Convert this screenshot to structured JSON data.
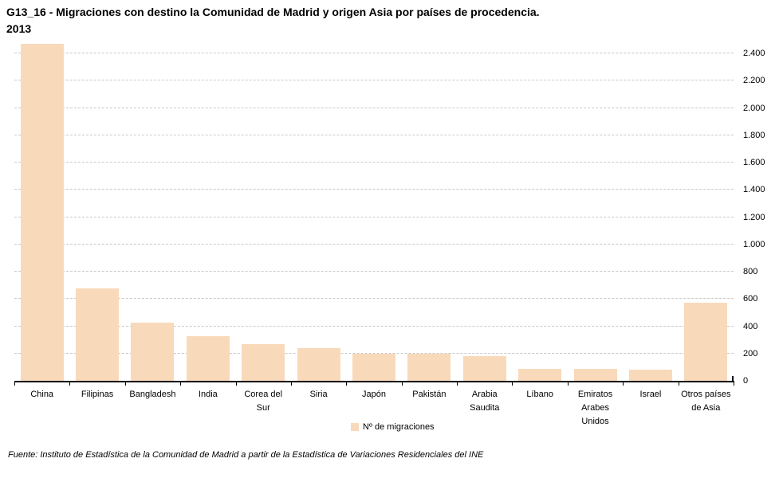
{
  "title": {
    "line1": "G13_16 - Migraciones con destino la Comunidad de Madrid y origen Asia por países de procedencia.",
    "line2": "2013"
  },
  "legend": {
    "label": "Nº de migraciones"
  },
  "footer": {
    "source": "Fuente: Instituto de Estadística de la Comunidad de Madrid a partir de la Estadística de Variaciones Residenciales del INE"
  },
  "colors": {
    "bar_fill": "#F8DABB",
    "gridline": "#C9C9C9",
    "axis": "#000000",
    "text": "#000000"
  },
  "chart_data": {
    "type": "bar",
    "title": "G13_16 - Migraciones con destino la Comunidad de Madrid y origen Asia por países de procedencia.",
    "subtitle": "2013",
    "series_name": "Nº de migraciones",
    "categories": [
      "China",
      "Filipinas",
      "Bangladesh",
      "India",
      "Corea del Sur",
      "Siria",
      "Japón",
      "Pakistán",
      "Arabia Saudita",
      "Líbano",
      "Emiratos Arabes Unidos",
      "Israel",
      "Otros países de Asia"
    ],
    "category_label_lines": [
      [
        "China"
      ],
      [
        "Filipinas"
      ],
      [
        "Bangladesh"
      ],
      [
        "India"
      ],
      [
        "Corea del",
        "Sur"
      ],
      [
        "Siria"
      ],
      [
        "Japón"
      ],
      [
        "Pakistán"
      ],
      [
        "Arabia",
        "Saudita"
      ],
      [
        "Líbano"
      ],
      [
        "Emiratos",
        "Arabes",
        "Unidos"
      ],
      [
        "Israel"
      ],
      [
        "Otros países",
        "de Asia"
      ]
    ],
    "values": [
      2470,
      675,
      425,
      330,
      270,
      240,
      200,
      200,
      180,
      90,
      90,
      80,
      575
    ],
    "xlabel": "",
    "ylabel": "",
    "ylim": [
      0,
      2400
    ],
    "ytick_step": 200,
    "ytick_labels": [
      "0",
      "200",
      "400",
      "600",
      "800",
      "1.000",
      "1.200",
      "1.400",
      "1.600",
      "1.800",
      "2.000",
      "2.200",
      "2.400"
    ],
    "grid": "horizontal-dashed",
    "axis_side": "right",
    "legend_position": "bottom-center"
  }
}
